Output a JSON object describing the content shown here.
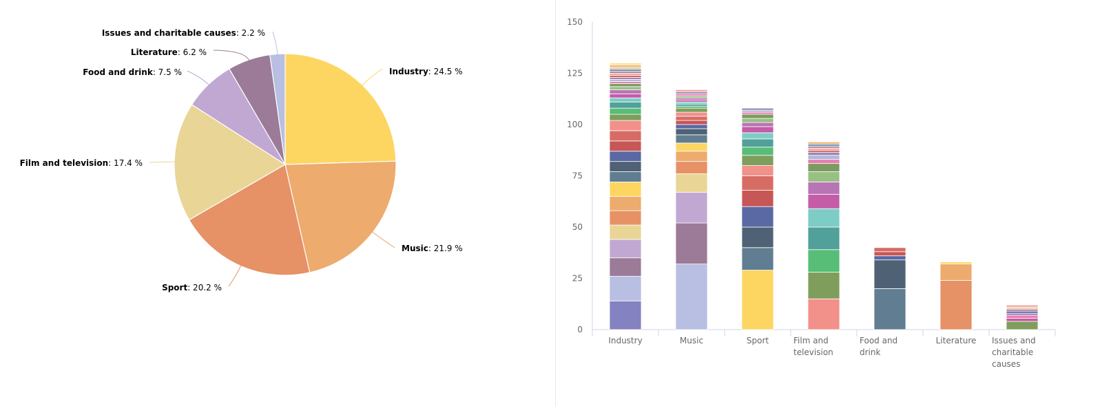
{
  "chart_data": [
    {
      "type": "pie",
      "title": "",
      "unit": "%",
      "slices": [
        {
          "name": "Industry",
          "value": 24.5,
          "display": "24.5 %",
          "color": "#fdd662"
        },
        {
          "name": "Music",
          "value": 21.9,
          "display": "21.9 %",
          "color": "#edab6e"
        },
        {
          "name": "Sport",
          "value": 20.2,
          "display": "20.2 %",
          "color": "#e69166"
        },
        {
          "name": "Film and television",
          "value": 17.4,
          "display": "17.4 %",
          "color": "#e9d595"
        },
        {
          "name": "Food and drink",
          "value": 7.5,
          "display": "7.5 %",
          "color": "#c1a8d3"
        },
        {
          "name": "Literature",
          "value": 6.2,
          "display": "6.2 %",
          "color": "#9b7b97"
        },
        {
          "name": "Issues and charitable causes",
          "value": 2.2,
          "display": "2.2 %",
          "color": "#b8bfe2"
        }
      ]
    },
    {
      "type": "bar",
      "stacked": true,
      "title": "",
      "xlabel": "",
      "ylabel": "",
      "ylim": [
        0,
        150
      ],
      "yticks": [
        0,
        25,
        50,
        75,
        100,
        125,
        150
      ],
      "grid": false,
      "categories": [
        {
          "lines": [
            "Industry"
          ]
        },
        {
          "lines": [
            "Music"
          ]
        },
        {
          "lines": [
            "Sport"
          ]
        },
        {
          "lines": [
            "Film and",
            "television"
          ]
        },
        {
          "lines": [
            "Food and",
            "drink"
          ]
        },
        {
          "lines": [
            "Literature"
          ]
        },
        {
          "lines": [
            "Issues and",
            "charitable",
            "causes"
          ]
        }
      ],
      "stacks": [
        {
          "segments": [
            {
              "value": 14,
              "color": "#8482c1"
            },
            {
              "value": 12,
              "color": "#b8bfe2"
            },
            {
              "value": 9,
              "color": "#9b7b97"
            },
            {
              "value": 9,
              "color": "#c1a8d3"
            },
            {
              "value": 7,
              "color": "#e9d595"
            },
            {
              "value": 7,
              "color": "#e69166"
            },
            {
              "value": 7,
              "color": "#edab6e"
            },
            {
              "value": 7,
              "color": "#fdd662"
            },
            {
              "value": 5,
              "color": "#617d91"
            },
            {
              "value": 5,
              "color": "#4f6275"
            },
            {
              "value": 5,
              "color": "#5a68a3"
            },
            {
              "value": 5,
              "color": "#c75656"
            },
            {
              "value": 5,
              "color": "#d66c64"
            },
            {
              "value": 5,
              "color": "#f1918a"
            },
            {
              "value": 3,
              "color": "#7f9e5c"
            },
            {
              "value": 3,
              "color": "#58bd77"
            },
            {
              "value": 3,
              "color": "#52a09a"
            },
            {
              "value": 2,
              "color": "#7dcdc6"
            },
            {
              "value": 2,
              "color": "#c55ca8"
            },
            {
              "value": 2,
              "color": "#b775b4"
            },
            {
              "value": 1.5,
              "color": "#98c083"
            },
            {
              "value": 1.5,
              "color": "#7c9b62"
            },
            {
              "value": 1,
              "color": "#e57faf"
            },
            {
              "value": 1,
              "color": "#b2b8d7"
            },
            {
              "value": 1,
              "color": "#9a85b5"
            },
            {
              "value": 1,
              "color": "#d65e5e"
            },
            {
              "value": 1,
              "color": "#f3a3a0"
            },
            {
              "value": 1,
              "color": "#a9869d"
            },
            {
              "value": 1,
              "color": "#6e8fa6"
            },
            {
              "value": 1,
              "color": "#e6c8a0"
            },
            {
              "value": 1,
              "color": "#f0b074"
            },
            {
              "value": 1,
              "color": "#fde08a"
            }
          ]
        },
        {
          "segments": [
            {
              "value": 32,
              "color": "#b8bfe2"
            },
            {
              "value": 20,
              "color": "#9b7b97"
            },
            {
              "value": 15,
              "color": "#c1a8d3"
            },
            {
              "value": 9,
              "color": "#e9d595"
            },
            {
              "value": 6,
              "color": "#e69166"
            },
            {
              "value": 5,
              "color": "#edab6e"
            },
            {
              "value": 4,
              "color": "#fdd662"
            },
            {
              "value": 4,
              "color": "#617d91"
            },
            {
              "value": 3,
              "color": "#4f6275"
            },
            {
              "value": 2,
              "color": "#5a68a3"
            },
            {
              "value": 2,
              "color": "#c75656"
            },
            {
              "value": 2,
              "color": "#d66c64"
            },
            {
              "value": 2,
              "color": "#f1918a"
            },
            {
              "value": 2,
              "color": "#7f9e5c"
            },
            {
              "value": 1,
              "color": "#58bd77"
            },
            {
              "value": 1,
              "color": "#52a09a"
            },
            {
              "value": 1,
              "color": "#7dcdc6"
            },
            {
              "value": 1,
              "color": "#c55ca8"
            },
            {
              "value": 1,
              "color": "#b775b4"
            },
            {
              "value": 1,
              "color": "#98c083"
            },
            {
              "value": 1,
              "color": "#e57faf"
            },
            {
              "value": 1,
              "color": "#9a85b5"
            },
            {
              "value": 1,
              "color": "#f3a3a0"
            }
          ]
        },
        {
          "segments": [
            {
              "value": 29,
              "color": "#fdd662"
            },
            {
              "value": 11,
              "color": "#617d91"
            },
            {
              "value": 10,
              "color": "#4f6275"
            },
            {
              "value": 10,
              "color": "#5a68a3"
            },
            {
              "value": 8,
              "color": "#c75656"
            },
            {
              "value": 7,
              "color": "#d66c64"
            },
            {
              "value": 5,
              "color": "#f1918a"
            },
            {
              "value": 5,
              "color": "#7f9e5c"
            },
            {
              "value": 4,
              "color": "#58bd77"
            },
            {
              "value": 4,
              "color": "#52a09a"
            },
            {
              "value": 3,
              "color": "#7dcdc6"
            },
            {
              "value": 3,
              "color": "#c55ca8"
            },
            {
              "value": 2,
              "color": "#b775b4"
            },
            {
              "value": 2,
              "color": "#98c083"
            },
            {
              "value": 2,
              "color": "#7c9b62"
            },
            {
              "value": 1,
              "color": "#e57faf"
            },
            {
              "value": 1,
              "color": "#b2b8d7"
            },
            {
              "value": 1,
              "color": "#9a85b5"
            }
          ]
        },
        {
          "segments": [
            {
              "value": 15,
              "color": "#f1918a"
            },
            {
              "value": 13,
              "color": "#7f9e5c"
            },
            {
              "value": 11,
              "color": "#58bd77"
            },
            {
              "value": 11,
              "color": "#52a09a"
            },
            {
              "value": 9,
              "color": "#7dcdc6"
            },
            {
              "value": 7,
              "color": "#c55ca8"
            },
            {
              "value": 6,
              "color": "#b775b4"
            },
            {
              "value": 5,
              "color": "#98c083"
            },
            {
              "value": 4,
              "color": "#7c9b62"
            },
            {
              "value": 2,
              "color": "#e57faf"
            },
            {
              "value": 2,
              "color": "#b2b8d7"
            },
            {
              "value": 1.5,
              "color": "#9a85b5"
            },
            {
              "value": 1,
              "color": "#d65e5e"
            },
            {
              "value": 1,
              "color": "#f3a3a0"
            },
            {
              "value": 1,
              "color": "#a9869d"
            },
            {
              "value": 1,
              "color": "#6e8fa6"
            },
            {
              "value": 1,
              "color": "#f0b074"
            }
          ]
        },
        {
          "segments": [
            {
              "value": 20,
              "color": "#617d91"
            },
            {
              "value": 14,
              "color": "#4f6275"
            },
            {
              "value": 2,
              "color": "#5a68a3"
            },
            {
              "value": 2,
              "color": "#c75656"
            },
            {
              "value": 2,
              "color": "#d66c64"
            }
          ]
        },
        {
          "segments": [
            {
              "value": 24,
              "color": "#e69166"
            },
            {
              "value": 8,
              "color": "#edab6e"
            },
            {
              "value": 1,
              "color": "#fdd662"
            }
          ]
        },
        {
          "segments": [
            {
              "value": 4,
              "color": "#7f9e5c"
            },
            {
              "value": 1.5,
              "color": "#c55ca8"
            },
            {
              "value": 1.5,
              "color": "#e57faf"
            },
            {
              "value": 1,
              "color": "#9a85b5"
            },
            {
              "value": 1,
              "color": "#5a68a3"
            },
            {
              "value": 1,
              "color": "#b775b4"
            },
            {
              "value": 1,
              "color": "#e9d595"
            },
            {
              "value": 1,
              "color": "#f3a3a0"
            }
          ]
        }
      ]
    }
  ]
}
